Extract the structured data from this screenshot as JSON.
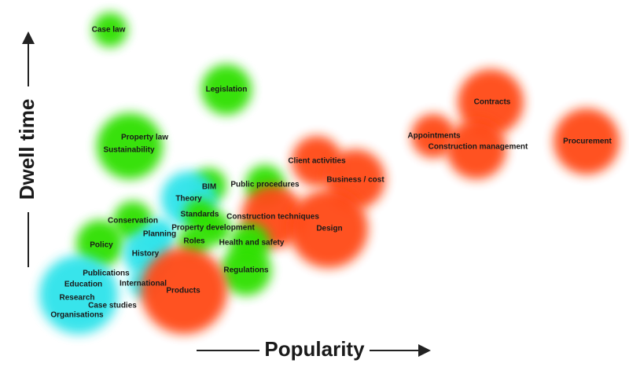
{
  "x_axis_label": "Popularity",
  "y_axis_label": "Dwell time",
  "nodes": [
    {
      "label": "Case law",
      "color": "#2ee000"
    },
    {
      "label": "Legislation",
      "color": "#2ee000"
    },
    {
      "label": "Property law",
      "color": "#2ee000"
    },
    {
      "label": "Sustainability",
      "color": "#2ee000"
    },
    {
      "label": "Contracts",
      "color": "#ff4a12"
    },
    {
      "label": "Appointments",
      "color": "#ff4a12"
    },
    {
      "label": "Construction management",
      "color": "#ff4a12"
    },
    {
      "label": "Procurement",
      "color": "#ff4a12"
    },
    {
      "label": "Client activities",
      "color": "#ff4a12"
    },
    {
      "label": "Business / cost",
      "color": "#ff4a12"
    },
    {
      "label": "Public procedures",
      "color": "#2ee000"
    },
    {
      "label": "BIM",
      "color": "#2ee000"
    },
    {
      "label": "Theory",
      "color": "#2ee3ea"
    },
    {
      "label": "Standards",
      "color": "#2ee000"
    },
    {
      "label": "Construction techniques",
      "color": "#ff4a12"
    },
    {
      "label": "Design",
      "color": "#ff4a12"
    },
    {
      "label": "Conservation",
      "color": "#2ee000"
    },
    {
      "label": "Property development",
      "color": "#2ee000"
    },
    {
      "label": "Planning",
      "color": "#2ee3ea"
    },
    {
      "label": "Roles",
      "color": "#2ee000"
    },
    {
      "label": "Health and safety",
      "color": "#2ee000"
    },
    {
      "label": "Policy",
      "color": "#2ee000"
    },
    {
      "label": "History",
      "color": "#2ee3ea"
    },
    {
      "label": "Regulations",
      "color": "#2ee000"
    },
    {
      "label": "Publications",
      "color": "#2ee3ea"
    },
    {
      "label": "Education",
      "color": "#2ee3ea"
    },
    {
      "label": "International",
      "color": "#2ee3ea"
    },
    {
      "label": "Products",
      "color": "#ff4a12"
    },
    {
      "label": "Research",
      "color": "#2ee3ea"
    },
    {
      "label": "Case studies",
      "color": "#2ee3ea"
    },
    {
      "label": "Organisations",
      "color": "#2ee3ea"
    }
  ]
}
